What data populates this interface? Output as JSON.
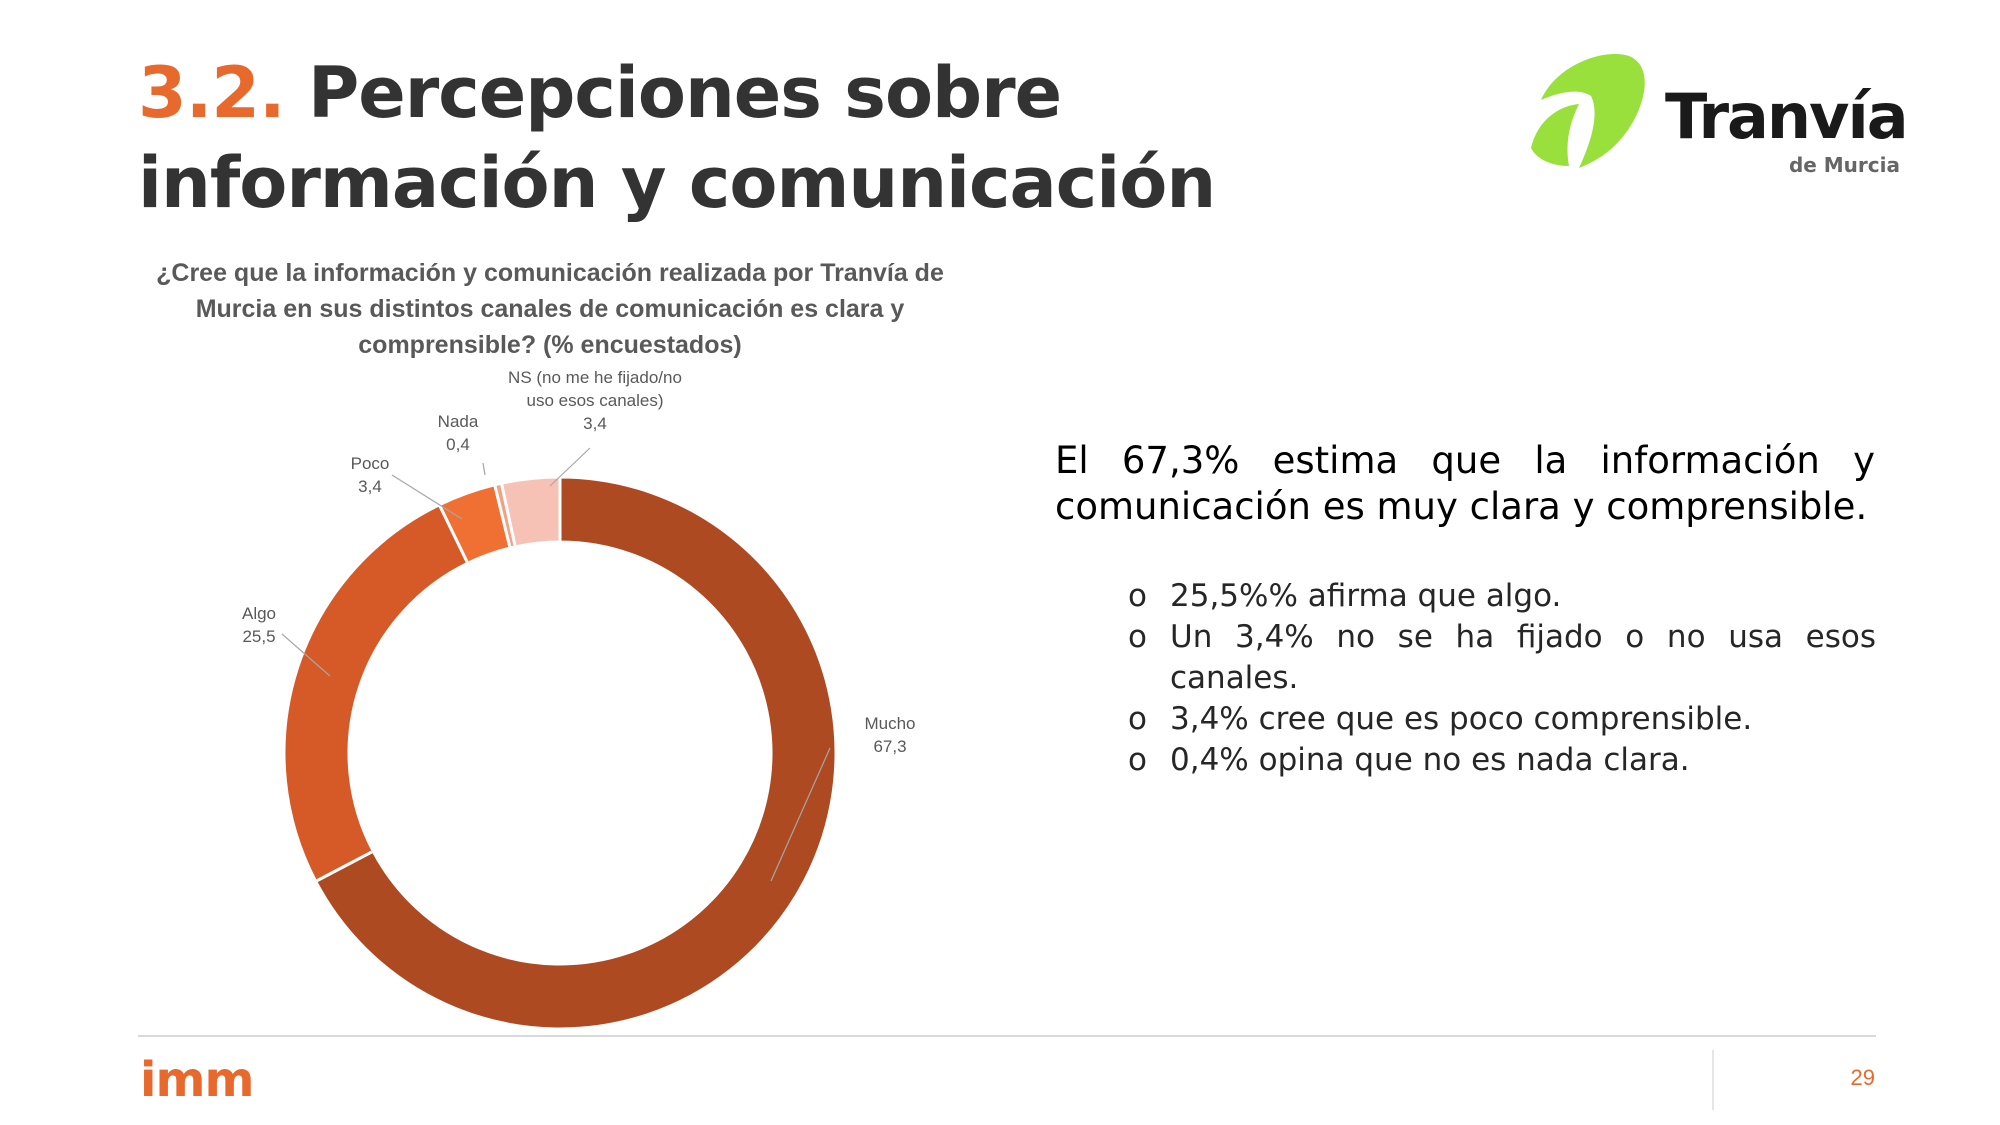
{
  "header": {
    "section_number": "3.2.",
    "title": "Percepciones sobre información y comunicación"
  },
  "logo": {
    "name": "Tranvía",
    "subtitle": "de Murcia",
    "accent_color": "#99e03c"
  },
  "chart_data": {
    "type": "pie",
    "variant": "donut",
    "title": "¿Cree que la información y comunicación realizada por Tranvía de Murcia en sus distintos canales de comunicación es clara y comprensible? (% encuestados)",
    "categories": [
      "Mucho",
      "Algo",
      "Poco",
      "Nada",
      "NS (no me he fijado/no uso esos canales)"
    ],
    "values": [
      67.3,
      25.5,
      3.4,
      0.4,
      3.4
    ],
    "value_labels": [
      "67,3",
      "25,5",
      "3,4",
      "0,4",
      "3,4"
    ],
    "label_lines": [
      [
        "Mucho"
      ],
      [
        "Algo"
      ],
      [
        "Poco"
      ],
      [
        "Nada"
      ],
      [
        "NS (no me he fijado/no",
        "uso esos canales)"
      ]
    ],
    "colors": [
      "#ae4a22",
      "#d65a28",
      "#f07034",
      "#f2a184",
      "#f5c2b5"
    ],
    "start_angle_deg": 0,
    "direction": "clockwise"
  },
  "summary": {
    "text": "El 67,3% estima que la información y comunicación es muy clara y comprensible.",
    "bullet_marker": "o",
    "bullets": [
      "25,5%% afirma que algo.",
      "Un 3,4%  no se ha fijado o no usa esos canales.",
      "3,4% cree que es poco comprensible.",
      "0,4% opina que no es nada clara."
    ]
  },
  "footer": {
    "brand": "imm",
    "page_number": "29",
    "brand_color": "#e8692c"
  }
}
